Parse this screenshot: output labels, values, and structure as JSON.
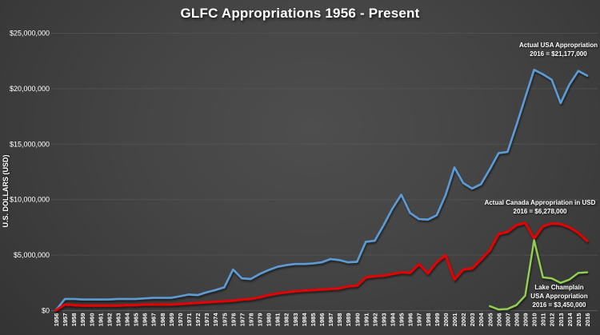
{
  "title": "GLFC Appropriations 1956 - Present",
  "y_axis_label": "U.S. DOLLARS (USD)",
  "text_color": "#ffffff",
  "grid_color": "#5c5c5c",
  "annotations": {
    "usa": {
      "line1": "Actual USA Appropriation",
      "line2": "2016 = $21,177,000"
    },
    "canada": {
      "line1": "Actual Canada Appropriation in USD",
      "line2": "2016 = $6,278,000"
    },
    "lake_champlain": {
      "line1": "Lake Champlain",
      "line2": "USA Appropriation",
      "line3": "2016 = $3,450,000"
    }
  },
  "chart_data": {
    "type": "line",
    "title": "GLFC Appropriations 1956 - Present",
    "xlabel": "",
    "ylabel": "U.S. DOLLARS (USD)",
    "ylim": [
      0,
      25000000
    ],
    "grid": true,
    "legend_position": "annotations-on-chart",
    "y_ticks": [
      {
        "value": 0,
        "label": "$0"
      },
      {
        "value": 5000000,
        "label": "$5,000,000"
      },
      {
        "value": 10000000,
        "label": "$10,000,000"
      },
      {
        "value": 15000000,
        "label": "$15,000,000"
      },
      {
        "value": 20000000,
        "label": "$20,000,000"
      },
      {
        "value": 25000000,
        "label": "$25,000,000"
      }
    ],
    "x": [
      1956,
      1957,
      1958,
      1959,
      1960,
      1961,
      1962,
      1963,
      1964,
      1965,
      1966,
      1967,
      1968,
      1969,
      1970,
      1971,
      1972,
      1973,
      1974,
      1975,
      1976,
      1977,
      1978,
      1979,
      1980,
      1981,
      1982,
      1983,
      1984,
      1985,
      1986,
      1987,
      1988,
      1989,
      1990,
      1991,
      1992,
      1993,
      1994,
      1995,
      1996,
      1997,
      1998,
      1999,
      2000,
      2001,
      2002,
      2003,
      2004,
      2005,
      2006,
      2007,
      2008,
      2009,
      2010,
      2011,
      2012,
      2013,
      2014,
      2015,
      2016
    ],
    "series": [
      {
        "name": "Actual USA Appropriation",
        "color": "#5B9BD5",
        "stroke_width": 2.6,
        "start_year": 1956,
        "values": [
          50000,
          1050000,
          1050000,
          1000000,
          1000000,
          1000000,
          1000000,
          1050000,
          1050000,
          1050000,
          1100000,
          1150000,
          1150000,
          1150000,
          1300000,
          1450000,
          1400000,
          1650000,
          1850000,
          2100000,
          3700000,
          2900000,
          2850000,
          3300000,
          3650000,
          3950000,
          4100000,
          4200000,
          4200000,
          4250000,
          4350000,
          4650000,
          4550000,
          4350000,
          4400000,
          6200000,
          6300000,
          7700000,
          9200000,
          10450000,
          8800000,
          8250000,
          8200000,
          8600000,
          10400000,
          12900000,
          11500000,
          11000000,
          11400000,
          12750000,
          14200000,
          14300000,
          16700000,
          19200000,
          21700000,
          21300000,
          20800000,
          18700000,
          20400000,
          21600000,
          21177000
        ]
      },
      {
        "name": "Actual Canada Appropriation in USD",
        "color": "#E60004",
        "stroke_width": 3,
        "start_year": 1956,
        "values": [
          30000,
          550000,
          500000,
          450000,
          450000,
          450000,
          450000,
          450000,
          500000,
          500000,
          550000,
          550000,
          550000,
          550000,
          600000,
          650000,
          700000,
          750000,
          800000,
          850000,
          900000,
          1000000,
          1050000,
          1200000,
          1400000,
          1550000,
          1650000,
          1750000,
          1800000,
          1850000,
          1900000,
          1950000,
          2000000,
          2200000,
          2250000,
          3000000,
          3100000,
          3150000,
          3300000,
          3450000,
          3400000,
          4200000,
          3350000,
          4350000,
          5000000,
          2800000,
          3700000,
          3800000,
          4600000,
          5450000,
          6900000,
          7100000,
          7700000,
          7900000,
          6500000,
          7600000,
          7850000,
          7800000,
          7500000,
          7000000,
          6278000
        ]
      },
      {
        "name": "Lake Champlain USA Appropriation",
        "color": "#92D050",
        "stroke_width": 2.4,
        "start_year": 2005,
        "values": [
          400000,
          100000,
          150000,
          500000,
          1350000,
          6350000,
          3000000,
          2900000,
          2500000,
          2800000,
          3400000,
          3450000
        ]
      }
    ]
  }
}
